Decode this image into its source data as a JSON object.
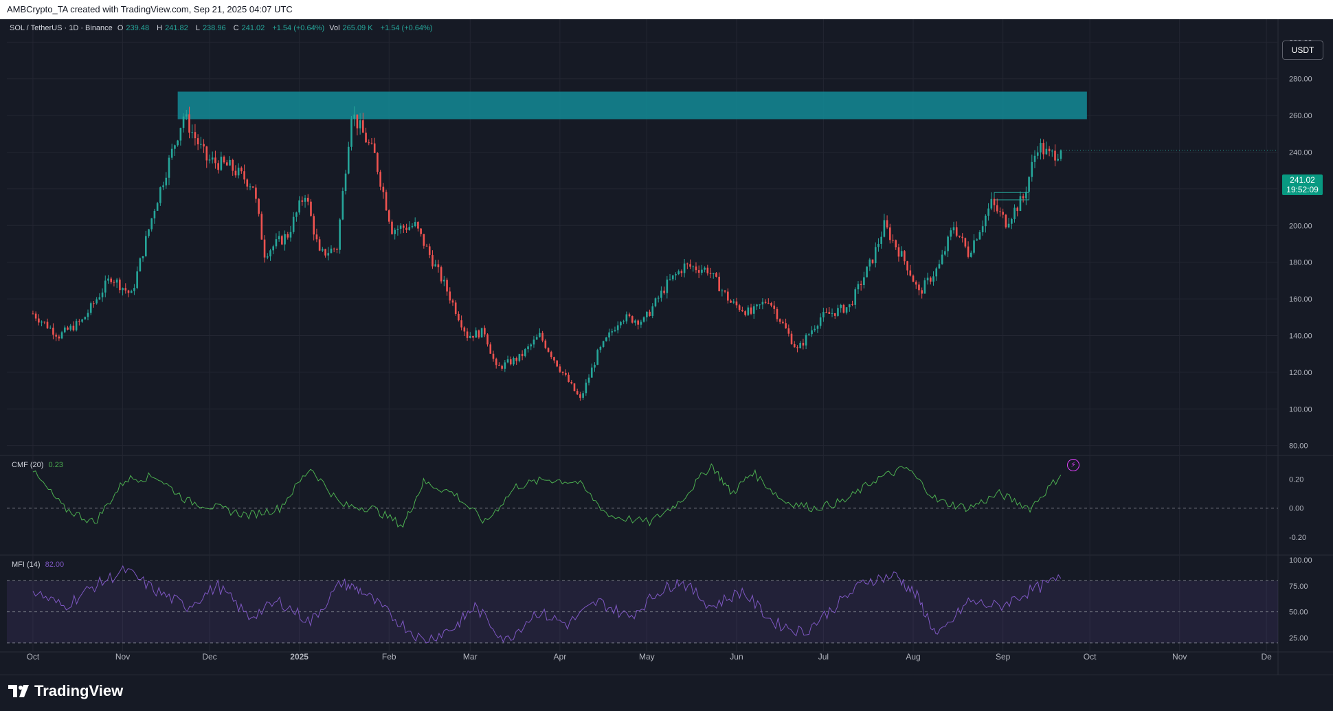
{
  "header": {
    "attribution": "AMBCrypto_TA created with TradingView.com, Sep 21, 2025 04:07 UTC"
  },
  "legend": {
    "symbol": "SOL / TetherUS · 1D · Binance",
    "o_label": "O",
    "o_value": "239.48",
    "h_label": "H",
    "h_value": "241.82",
    "l_label": "L",
    "l_value": "238.96",
    "c_label": "C",
    "c_value": "241.02",
    "change": "+1.54 (+0.64%)",
    "vol_label": "Vol",
    "vol_value": "265.09 K",
    "vol_change": "+1.54 (+0.64%)"
  },
  "currency_badge": "USDT",
  "price_tag": {
    "price": "241.02",
    "countdown": "19:52:09"
  },
  "cmf": {
    "label": "CMF (20)",
    "value": "0.23"
  },
  "mfi": {
    "label": "MFI (14)",
    "value": "82.00"
  },
  "footer": {
    "brand": "TradingView"
  },
  "colors": {
    "up": "#26a69a",
    "down": "#ef5350",
    "zone": "#138b97",
    "cmf": "#4caf50",
    "mfi": "#7e57c2",
    "background": "#161a25"
  },
  "chart_data": [
    {
      "type": "candlestick",
      "title": "SOL / TetherUS · 1D · Binance",
      "x_ticks": [
        "Oct",
        "Nov",
        "Dec",
        "2025",
        "Feb",
        "Mar",
        "Apr",
        "May",
        "Jun",
        "Jul",
        "Aug",
        "Sep",
        "Oct",
        "Nov",
        "De"
      ],
      "y_ticks": [
        "300.00",
        "280.00",
        "260.00",
        "240.00",
        "220.00",
        "200.00",
        "180.00",
        "160.00",
        "140.00",
        "120.00",
        "100.00",
        "80.00"
      ],
      "ylim": [
        75,
        305
      ],
      "resistance_zone": [
        258,
        273
      ],
      "approx_close_path": [
        [
          "2024-10-01",
          152
        ],
        [
          "2024-10-10",
          140
        ],
        [
          "2024-10-18",
          148
        ],
        [
          "2024-10-28",
          172
        ],
        [
          "2024-11-04",
          162
        ],
        [
          "2024-11-12",
          210
        ],
        [
          "2024-11-22",
          260
        ],
        [
          "2024-11-30",
          236
        ],
        [
          "2024-12-08",
          232
        ],
        [
          "2024-12-16",
          222
        ],
        [
          "2024-12-20",
          185
        ],
        [
          "2024-12-28",
          195
        ],
        [
          "2025-01-03",
          218
        ],
        [
          "2025-01-08",
          184
        ],
        [
          "2025-01-14",
          188
        ],
        [
          "2025-01-19",
          262
        ],
        [
          "2025-01-27",
          238
        ],
        [
          "2025-02-02",
          198
        ],
        [
          "2025-02-10",
          200
        ],
        [
          "2025-02-20",
          168
        ],
        [
          "2025-02-28",
          140
        ],
        [
          "2025-03-06",
          142
        ],
        [
          "2025-03-10",
          122
        ],
        [
          "2025-03-18",
          128
        ],
        [
          "2025-03-25",
          140
        ],
        [
          "2025-04-01",
          122
        ],
        [
          "2025-04-08",
          105
        ],
        [
          "2025-04-14",
          130
        ],
        [
          "2025-04-22",
          150
        ],
        [
          "2025-04-30",
          148
        ],
        [
          "2025-05-08",
          168
        ],
        [
          "2025-05-14",
          178
        ],
        [
          "2025-05-22",
          176
        ],
        [
          "2025-05-30",
          158
        ],
        [
          "2025-06-06",
          152
        ],
        [
          "2025-06-12",
          160
        ],
        [
          "2025-06-22",
          132
        ],
        [
          "2025-06-30",
          150
        ],
        [
          "2025-07-10",
          156
        ],
        [
          "2025-07-18",
          182
        ],
        [
          "2025-07-22",
          200
        ],
        [
          "2025-07-30",
          178
        ],
        [
          "2025-08-03",
          163
        ],
        [
          "2025-08-10",
          178
        ],
        [
          "2025-08-15",
          200
        ],
        [
          "2025-08-20",
          185
        ],
        [
          "2025-08-28",
          212
        ],
        [
          "2025-09-02",
          202
        ],
        [
          "2025-09-08",
          215
        ],
        [
          "2025-09-13",
          244
        ],
        [
          "2025-09-17",
          238
        ],
        [
          "2025-09-21",
          241.02
        ]
      ]
    },
    {
      "type": "line",
      "title": "CMF (20)",
      "y_ticks": [
        "0.20",
        "0.00",
        "-0.20"
      ],
      "current_value": 0.23,
      "approx_path": [
        [
          0,
          0.25
        ],
        [
          0.03,
          0.0
        ],
        [
          0.06,
          -0.1
        ],
        [
          0.09,
          0.2
        ],
        [
          0.12,
          0.22
        ],
        [
          0.15,
          0.05
        ],
        [
          0.18,
          0.0
        ],
        [
          0.21,
          -0.05
        ],
        [
          0.24,
          0.0
        ],
        [
          0.27,
          0.28
        ],
        [
          0.3,
          0.02
        ],
        [
          0.33,
          0.0
        ],
        [
          0.36,
          -0.12
        ],
        [
          0.38,
          0.18
        ],
        [
          0.41,
          0.1
        ],
        [
          0.44,
          -0.1
        ],
        [
          0.47,
          0.15
        ],
        [
          0.5,
          0.2
        ],
        [
          0.53,
          0.18
        ],
        [
          0.56,
          -0.05
        ],
        [
          0.6,
          -0.1
        ],
        [
          0.63,
          0.05
        ],
        [
          0.66,
          0.3
        ],
        [
          0.68,
          0.1
        ],
        [
          0.7,
          0.25
        ],
        [
          0.73,
          0.05
        ],
        [
          0.76,
          0.0
        ],
        [
          0.79,
          0.05
        ],
        [
          0.82,
          0.2
        ],
        [
          0.85,
          0.28
        ],
        [
          0.88,
          0.05
        ],
        [
          0.91,
          0.0
        ],
        [
          0.94,
          0.1
        ],
        [
          0.97,
          0.0
        ],
        [
          1.0,
          0.23
        ]
      ]
    },
    {
      "type": "line",
      "title": "MFI (14)",
      "y_ticks": [
        "100.00",
        "75.00",
        "50.00",
        "25.00"
      ],
      "bands": [
        20,
        50,
        80
      ],
      "current_value": 82.0,
      "approx_path": [
        [
          0,
          70
        ],
        [
          0.03,
          55
        ],
        [
          0.06,
          75
        ],
        [
          0.09,
          90
        ],
        [
          0.12,
          70
        ],
        [
          0.15,
          55
        ],
        [
          0.18,
          75
        ],
        [
          0.21,
          45
        ],
        [
          0.24,
          60
        ],
        [
          0.27,
          40
        ],
        [
          0.3,
          78
        ],
        [
          0.32,
          70
        ],
        [
          0.35,
          45
        ],
        [
          0.38,
          22
        ],
        [
          0.41,
          35
        ],
        [
          0.43,
          55
        ],
        [
          0.46,
          22
        ],
        [
          0.49,
          50
        ],
        [
          0.52,
          38
        ],
        [
          0.55,
          60
        ],
        [
          0.58,
          45
        ],
        [
          0.61,
          70
        ],
        [
          0.63,
          80
        ],
        [
          0.66,
          55
        ],
        [
          0.69,
          70
        ],
        [
          0.72,
          40
        ],
        [
          0.75,
          30
        ],
        [
          0.78,
          55
        ],
        [
          0.81,
          80
        ],
        [
          0.84,
          85
        ],
        [
          0.86,
          65
        ],
        [
          0.88,
          25
        ],
        [
          0.91,
          60
        ],
        [
          0.94,
          55
        ],
        [
          0.97,
          70
        ],
        [
          1.0,
          82
        ]
      ]
    }
  ]
}
